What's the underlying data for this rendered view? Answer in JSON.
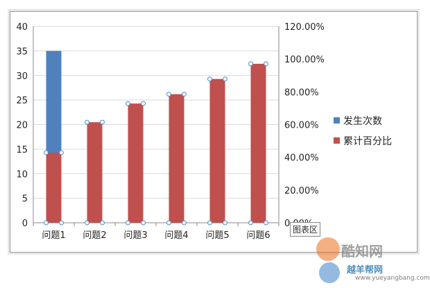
{
  "chart_data": {
    "type": "bar",
    "categories": [
      "问题1",
      "问题2",
      "问题3",
      "问题4",
      "问题5",
      "问题6"
    ],
    "series": [
      {
        "name": "发生次数",
        "axis": "left",
        "values": [
          35,
          0,
          0,
          0,
          0,
          0
        ]
      },
      {
        "name": "累计百分比",
        "axis": "right",
        "values": [
          0.4286,
          0.6143,
          0.7286,
          0.7857,
          0.8786,
          0.9714
        ]
      }
    ],
    "y_left": {
      "ylim": [
        0,
        40
      ],
      "ticks": [
        "0",
        "5",
        "10",
        "15",
        "20",
        "25",
        "30",
        "35",
        "40"
      ]
    },
    "y_right": {
      "ylim": [
        0,
        1.2
      ],
      "ticks": [
        "0.00%",
        "20.00%",
        "40.00%",
        "60.00%",
        "80.00%",
        "100.00%",
        "120.00%"
      ]
    },
    "legend": {
      "placement": "right"
    },
    "grid": true,
    "colors": {
      "发生次数": "#4f81bd",
      "累计百分比": "#c0504d"
    }
  },
  "tooltip": {
    "text": "图表区"
  },
  "watermark": {
    "brand": "酷知网",
    "sub": "越羊帮网",
    "url": "www.yueyangbang.com"
  }
}
